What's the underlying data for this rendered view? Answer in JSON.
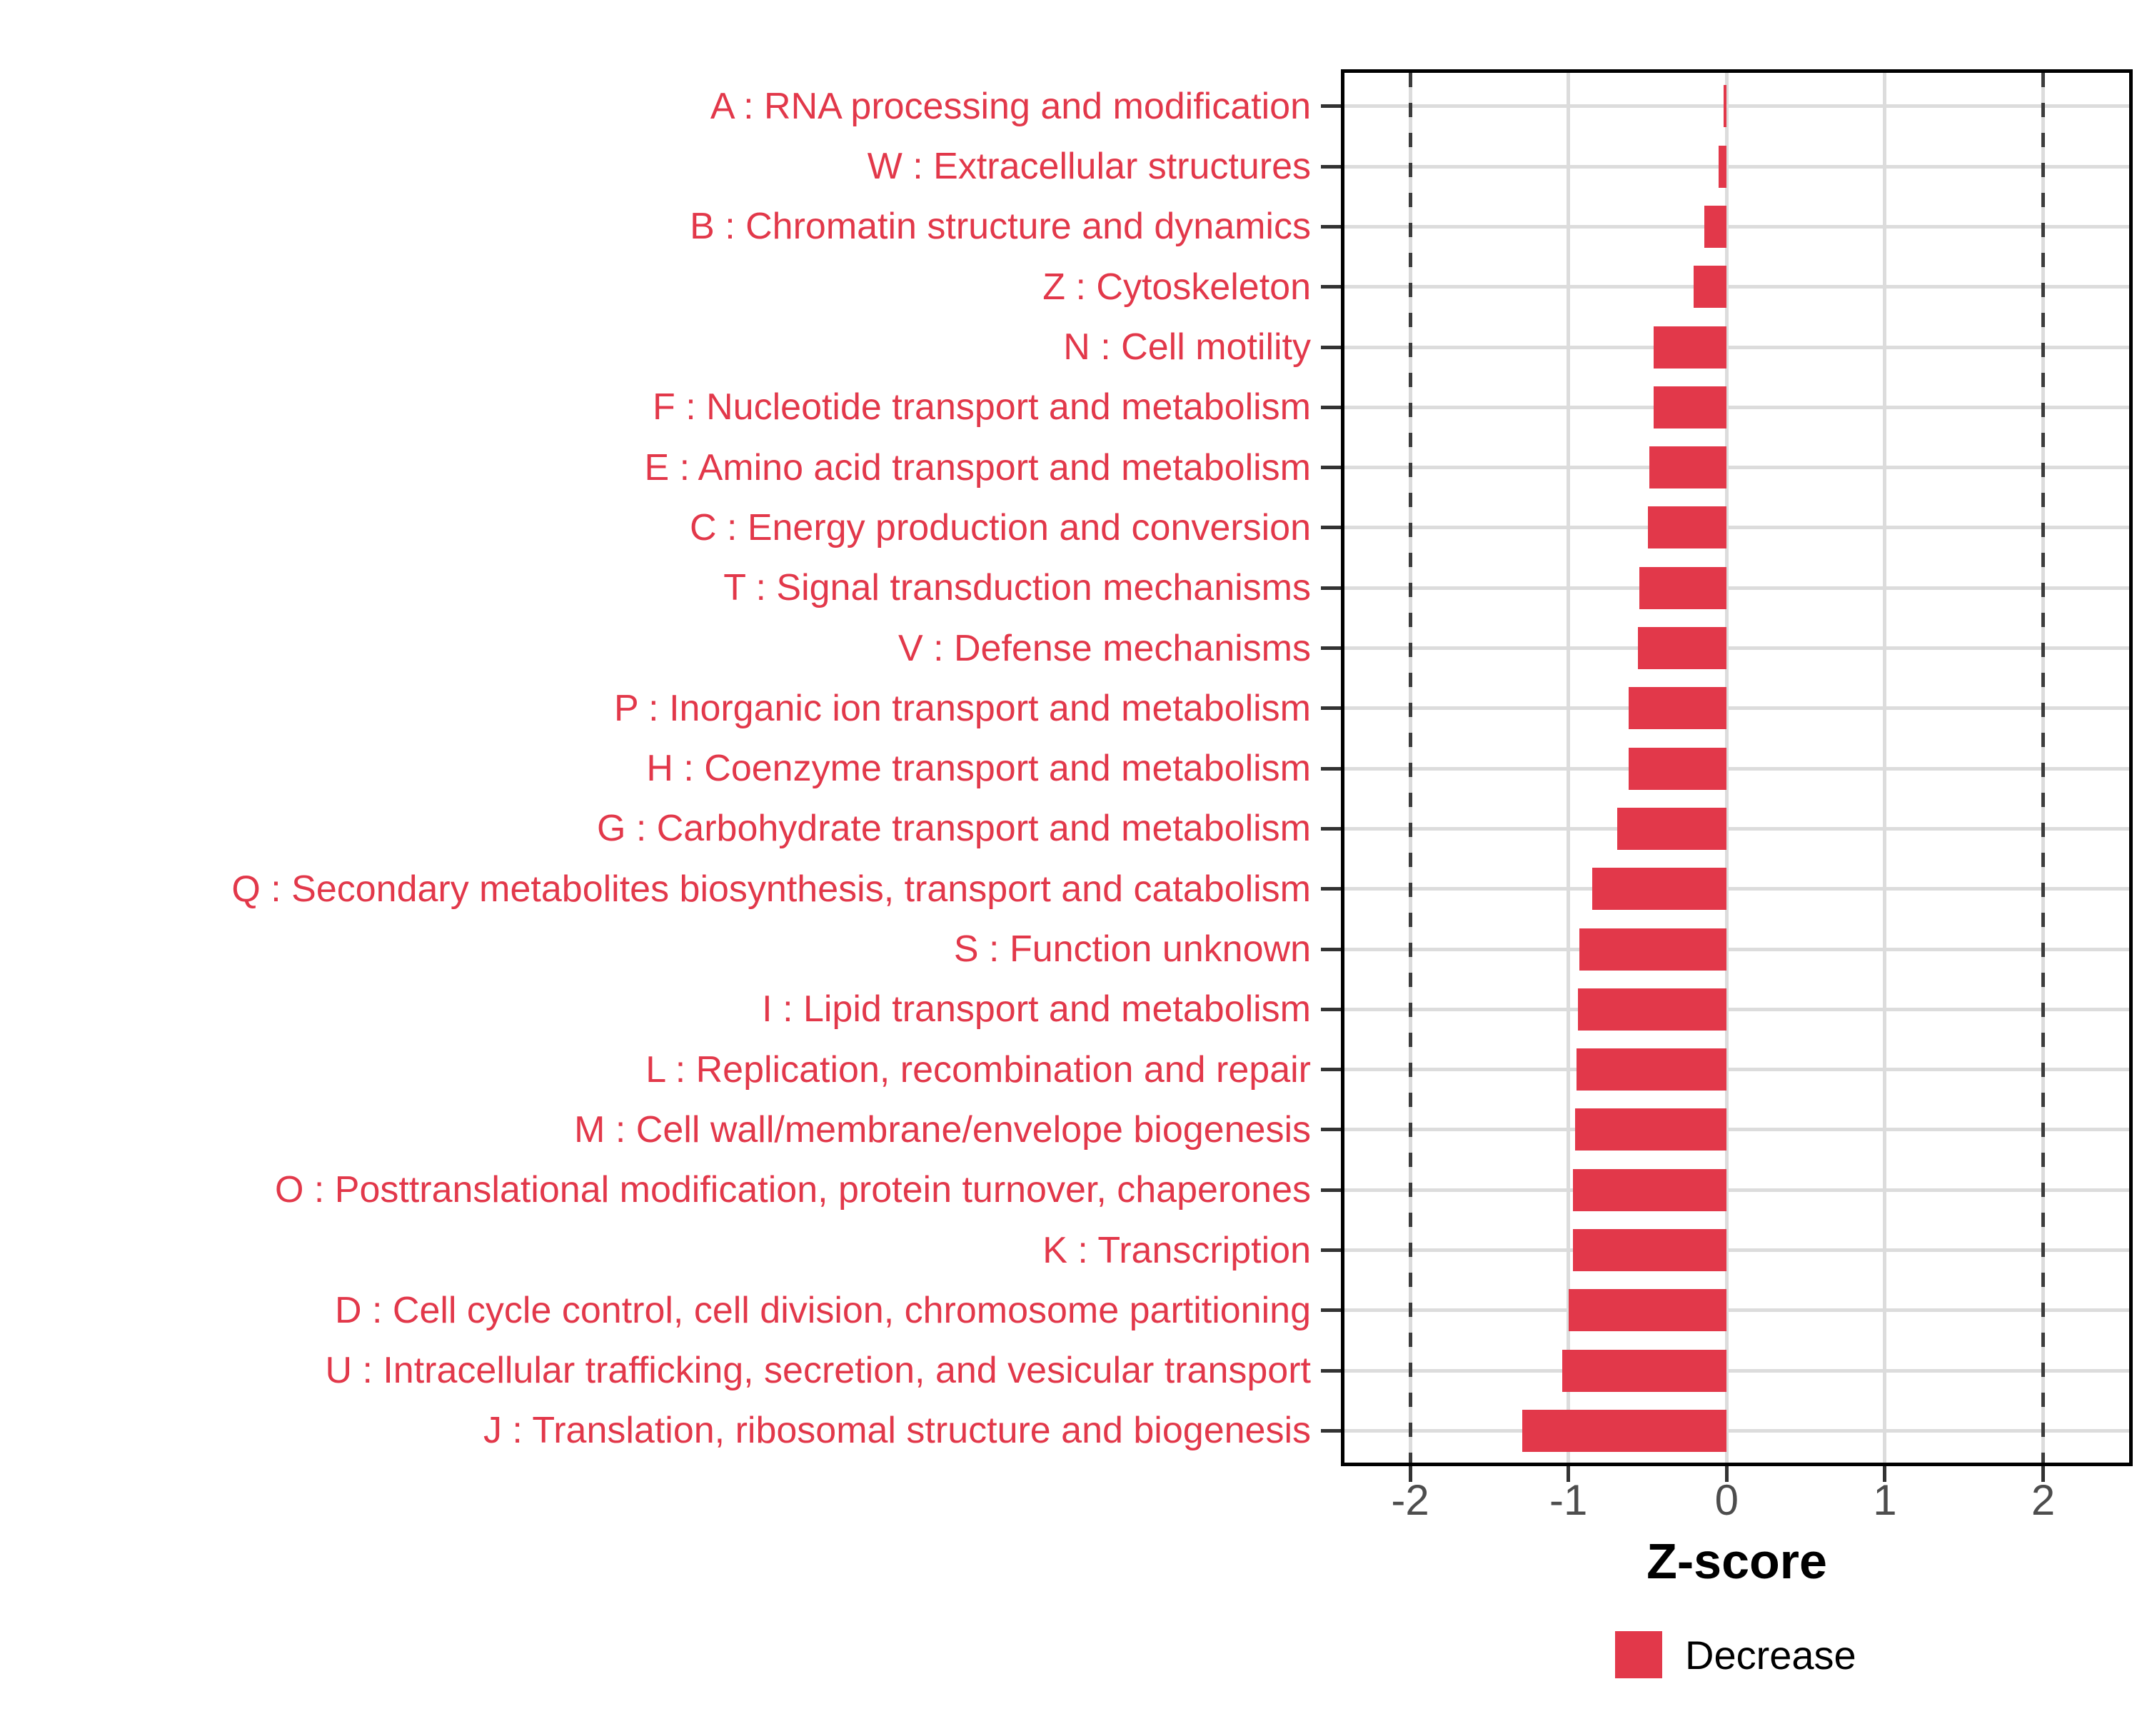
{
  "figure": {
    "xlabel": "Z-score",
    "legend_label": "Decrease",
    "colors": {
      "bar": "#E2384A",
      "category_label": "#E2384A",
      "grid": "#DCDCDC",
      "reference_line": "#3D3D3D",
      "axis_tick_text": "#4D4D4D",
      "axis_title_text": "#000000",
      "panel_border": "#000000"
    }
  },
  "chart_data": {
    "type": "bar",
    "orientation": "horizontal",
    "title": "",
    "xlabel": "Z-score",
    "ylabel": "",
    "xlim": [
      -2.42,
      2.55
    ],
    "x_ticks": [
      -2,
      -1,
      0,
      1,
      2
    ],
    "reference_lines_x": [
      -2,
      2
    ],
    "grid": true,
    "legend_position": "bottom",
    "legend": [
      {
        "label": "Decrease",
        "color": "#E2384A"
      }
    ],
    "categories": [
      "A : RNA processing and modification",
      "W : Extracellular structures",
      "B : Chromatin structure and dynamics",
      "Z : Cytoskeleton",
      "N : Cell motility",
      "F : Nucleotide transport and metabolism",
      "E : Amino acid transport and metabolism",
      "C : Energy production and conversion",
      "T : Signal transduction mechanisms",
      "V : Defense mechanisms",
      "P : Inorganic ion transport and metabolism",
      "H : Coenzyme transport and metabolism",
      "G : Carbohydrate transport and metabolism",
      "Q : Secondary metabolites biosynthesis, transport and catabolism",
      "S : Function unknown",
      "I : Lipid transport and metabolism",
      "L : Replication, recombination and repair",
      "M : Cell wall/membrane/envelope biogenesis",
      "O : Posttranslational modification, protein turnover, chaperones",
      "K : Transcription",
      "D : Cell cycle control, cell division, chromosome partitioning",
      "U : Intracellular trafficking, secretion, and vesicular transport",
      "J : Translation, ribosomal structure and biogenesis"
    ],
    "series": [
      {
        "name": "Decrease",
        "values": [
          -0.02,
          -0.05,
          -0.14,
          -0.21,
          -0.46,
          -0.46,
          -0.49,
          -0.5,
          -0.55,
          -0.56,
          -0.62,
          -0.62,
          -0.69,
          -0.85,
          -0.93,
          -0.94,
          -0.95,
          -0.96,
          -0.97,
          -0.97,
          -1.0,
          -1.04,
          -1.29
        ]
      }
    ]
  }
}
